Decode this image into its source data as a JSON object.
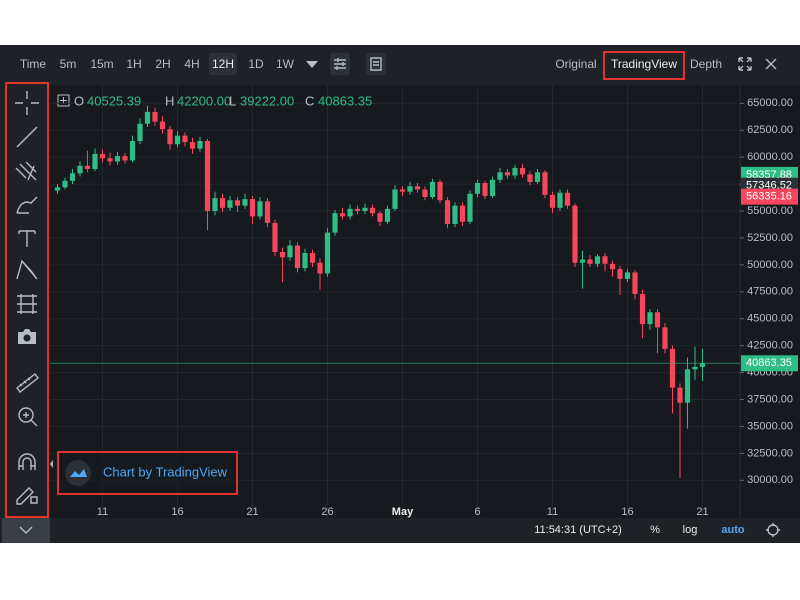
{
  "toolbar": {
    "intervals": [
      "Time",
      "5m",
      "15m",
      "1H",
      "2H",
      "4H",
      "12H",
      "1D",
      "1W"
    ],
    "active_interval": "12H",
    "views": [
      "Original",
      "TradingView",
      "Depth"
    ],
    "active_view": "TradingView"
  },
  "chart_data": {
    "type": "candlestick",
    "up_color": "#2ebd85",
    "down_color": "#f6465d",
    "grid": true,
    "legend": {
      "labels": [
        "O",
        "H",
        "L",
        "C"
      ],
      "value_labels": [
        "40525.39",
        "42200.00",
        "39222.00",
        "40863.35"
      ]
    },
    "xlim": [
      7.5,
      53.5
    ],
    "xticks": [
      11,
      16,
      21,
      26,
      {
        "value": 31,
        "label": "May"
      },
      {
        "value": 36,
        "label": "6"
      },
      {
        "value": 41,
        "label": "11"
      },
      {
        "value": 46,
        "label": "16"
      },
      {
        "value": 51,
        "label": "21"
      }
    ],
    "ylim": [
      26500,
      66700
    ],
    "yticks": [
      {
        "value": 65000,
        "label": "65000.00"
      },
      {
        "value": 62500,
        "label": "62500.00"
      },
      {
        "value": 60000,
        "label": "60000.00"
      },
      {
        "value": 57500,
        "label": "57500.00"
      },
      {
        "value": 55000,
        "label": "55000.00"
      },
      {
        "value": 52500,
        "label": "52500.00"
      },
      {
        "value": 50000,
        "label": "50000.00"
      },
      {
        "value": 47500,
        "label": "47500.00"
      },
      {
        "value": 45000,
        "label": "45000.00"
      },
      {
        "value": 42500,
        "label": "42500.00"
      },
      {
        "value": 40000,
        "label": "40000.00"
      },
      {
        "value": 37500,
        "label": "37500.00"
      },
      {
        "value": 35000,
        "label": "35000.00"
      },
      {
        "value": 32500,
        "label": "32500.00"
      },
      {
        "value": 30000,
        "label": "30000.00"
      }
    ],
    "x": [
      8,
      8.5,
      9,
      9.5,
      10,
      10.5,
      11,
      11.5,
      12,
      12.5,
      13,
      13.5,
      14,
      14.5,
      15,
      15.5,
      16,
      16.5,
      17,
      17.5,
      18,
      18.5,
      19,
      19.5,
      20,
      20.5,
      21,
      21.5,
      22,
      22.5,
      23,
      23.5,
      24,
      24.5,
      25,
      25.5,
      26,
      26.5,
      27,
      27.5,
      28,
      28.5,
      29,
      29.5,
      30,
      30.5,
      31,
      31.5,
      32,
      32.5,
      33,
      33.5,
      34,
      34.5,
      35,
      35.5,
      36,
      36.5,
      37,
      37.5,
      38,
      38.5,
      39,
      39.5,
      40,
      40.5,
      41,
      41.5,
      42,
      42.5,
      43,
      43.5,
      44,
      44.5,
      45,
      45.5,
      46,
      46.5,
      47,
      47.5,
      48,
      48.5,
      49,
      49.5,
      50,
      50.5,
      51
    ],
    "open": [
      56900,
      57200,
      57800,
      58500,
      59200,
      58900,
      60300,
      59900,
      59600,
      60100,
      59700,
      61500,
      63100,
      64200,
      63300,
      62600,
      61200,
      62000,
      61400,
      60800,
      61500,
      55000,
      56200,
      55300,
      56000,
      55500,
      56100,
      54500,
      55900,
      53900,
      51200,
      50700,
      51800,
      49700,
      51100,
      50200,
      49200,
      53000,
      54800,
      54500,
      55200,
      55000,
      55300,
      54800,
      54000,
      55200,
      57000,
      56800,
      57300,
      57000,
      56300,
      57700,
      56000,
      53800,
      55500,
      54000,
      56600,
      57600,
      56400,
      57900,
      58600,
      58300,
      59000,
      58400,
      57700,
      58600,
      56500,
      55300,
      56700,
      55500,
      50200,
      50500,
      50100,
      50800,
      50100,
      49600,
      48700,
      49300,
      47300,
      44500,
      45600,
      44200,
      42200,
      38600,
      37200,
      40300,
      40525.39
    ],
    "high": [
      57500,
      58100,
      58900,
      59600,
      60600,
      60800,
      60700,
      60400,
      60500,
      60400,
      62000,
      63600,
      64800,
      64600,
      63800,
      62900,
      62400,
      62300,
      61800,
      61900,
      61700,
      56800,
      56600,
      56400,
      56300,
      56600,
      56400,
      56300,
      56200,
      54200,
      51600,
      52300,
      52100,
      51500,
      51400,
      50600,
      53400,
      55100,
      55300,
      55600,
      55500,
      55700,
      55600,
      55000,
      55500,
      57400,
      57300,
      57700,
      57600,
      57300,
      58000,
      57900,
      56300,
      55800,
      55800,
      56900,
      57900,
      57800,
      58200,
      59000,
      58900,
      59300,
      59400,
      58700,
      58900,
      58800,
      56800,
      57000,
      57000,
      55700,
      51300,
      50900,
      51000,
      51100,
      50400,
      49900,
      49600,
      49500,
      47700,
      45900,
      45900,
      44600,
      42500,
      39000,
      41400,
      42400,
      42200
    ],
    "low": [
      56600,
      57000,
      57500,
      58200,
      58600,
      58700,
      59500,
      59200,
      59300,
      59400,
      59500,
      61200,
      62800,
      62900,
      62200,
      60700,
      60900,
      61000,
      60300,
      60500,
      53200,
      54600,
      54900,
      55000,
      54900,
      55200,
      53800,
      54200,
      53500,
      50800,
      48400,
      50400,
      49300,
      49400,
      49800,
      47700,
      48900,
      52700,
      54200,
      54200,
      54700,
      54700,
      54500,
      53600,
      53800,
      55000,
      56400,
      56500,
      56700,
      56000,
      56100,
      55700,
      53400,
      53500,
      53600,
      53800,
      56300,
      56100,
      56200,
      57600,
      58000,
      58000,
      58100,
      57400,
      57500,
      56200,
      54800,
      55000,
      55200,
      49800,
      47800,
      49800,
      49800,
      49400,
      48900,
      47200,
      48400,
      46800,
      43200,
      44000,
      41800,
      41800,
      36200,
      30200,
      34800,
      39300,
      39222
    ],
    "close": [
      57200,
      57800,
      58500,
      59200,
      58900,
      60300,
      59900,
      59600,
      60100,
      59700,
      61500,
      63100,
      64200,
      63300,
      62600,
      61200,
      62000,
      61400,
      60800,
      61500,
      55000,
      56200,
      55300,
      56000,
      55500,
      56100,
      54500,
      55900,
      53900,
      51200,
      50700,
      51800,
      49700,
      51100,
      50200,
      49200,
      53000,
      54800,
      54500,
      55200,
      55000,
      55300,
      54800,
      54000,
      55200,
      57000,
      56800,
      57300,
      57000,
      56300,
      57700,
      56000,
      53800,
      55500,
      54000,
      56600,
      57600,
      56400,
      57900,
      58600,
      58300,
      59000,
      58400,
      57700,
      58600,
      56500,
      55300,
      56700,
      55500,
      50200,
      50500,
      50100,
      50800,
      50100,
      49600,
      48700,
      49300,
      47300,
      44500,
      45600,
      44200,
      42200,
      38600,
      37200,
      40300,
      40525.39,
      40863.35
    ],
    "price_tags": [
      {
        "value": 58357.88,
        "color": "#2ebd85"
      },
      {
        "value": 57346.52,
        "color": "#2b2f36"
      },
      {
        "value": 56335.16,
        "color": "#f6465d"
      }
    ],
    "last_price": {
      "value": 40863.35,
      "color": "#2ebd85"
    }
  },
  "watermark": "Chart by TradingView",
  "status_bar": {
    "time": "11:54:31 (UTC+2)",
    "buttons": [
      "%",
      "log",
      "auto"
    ],
    "active_button": "auto"
  }
}
